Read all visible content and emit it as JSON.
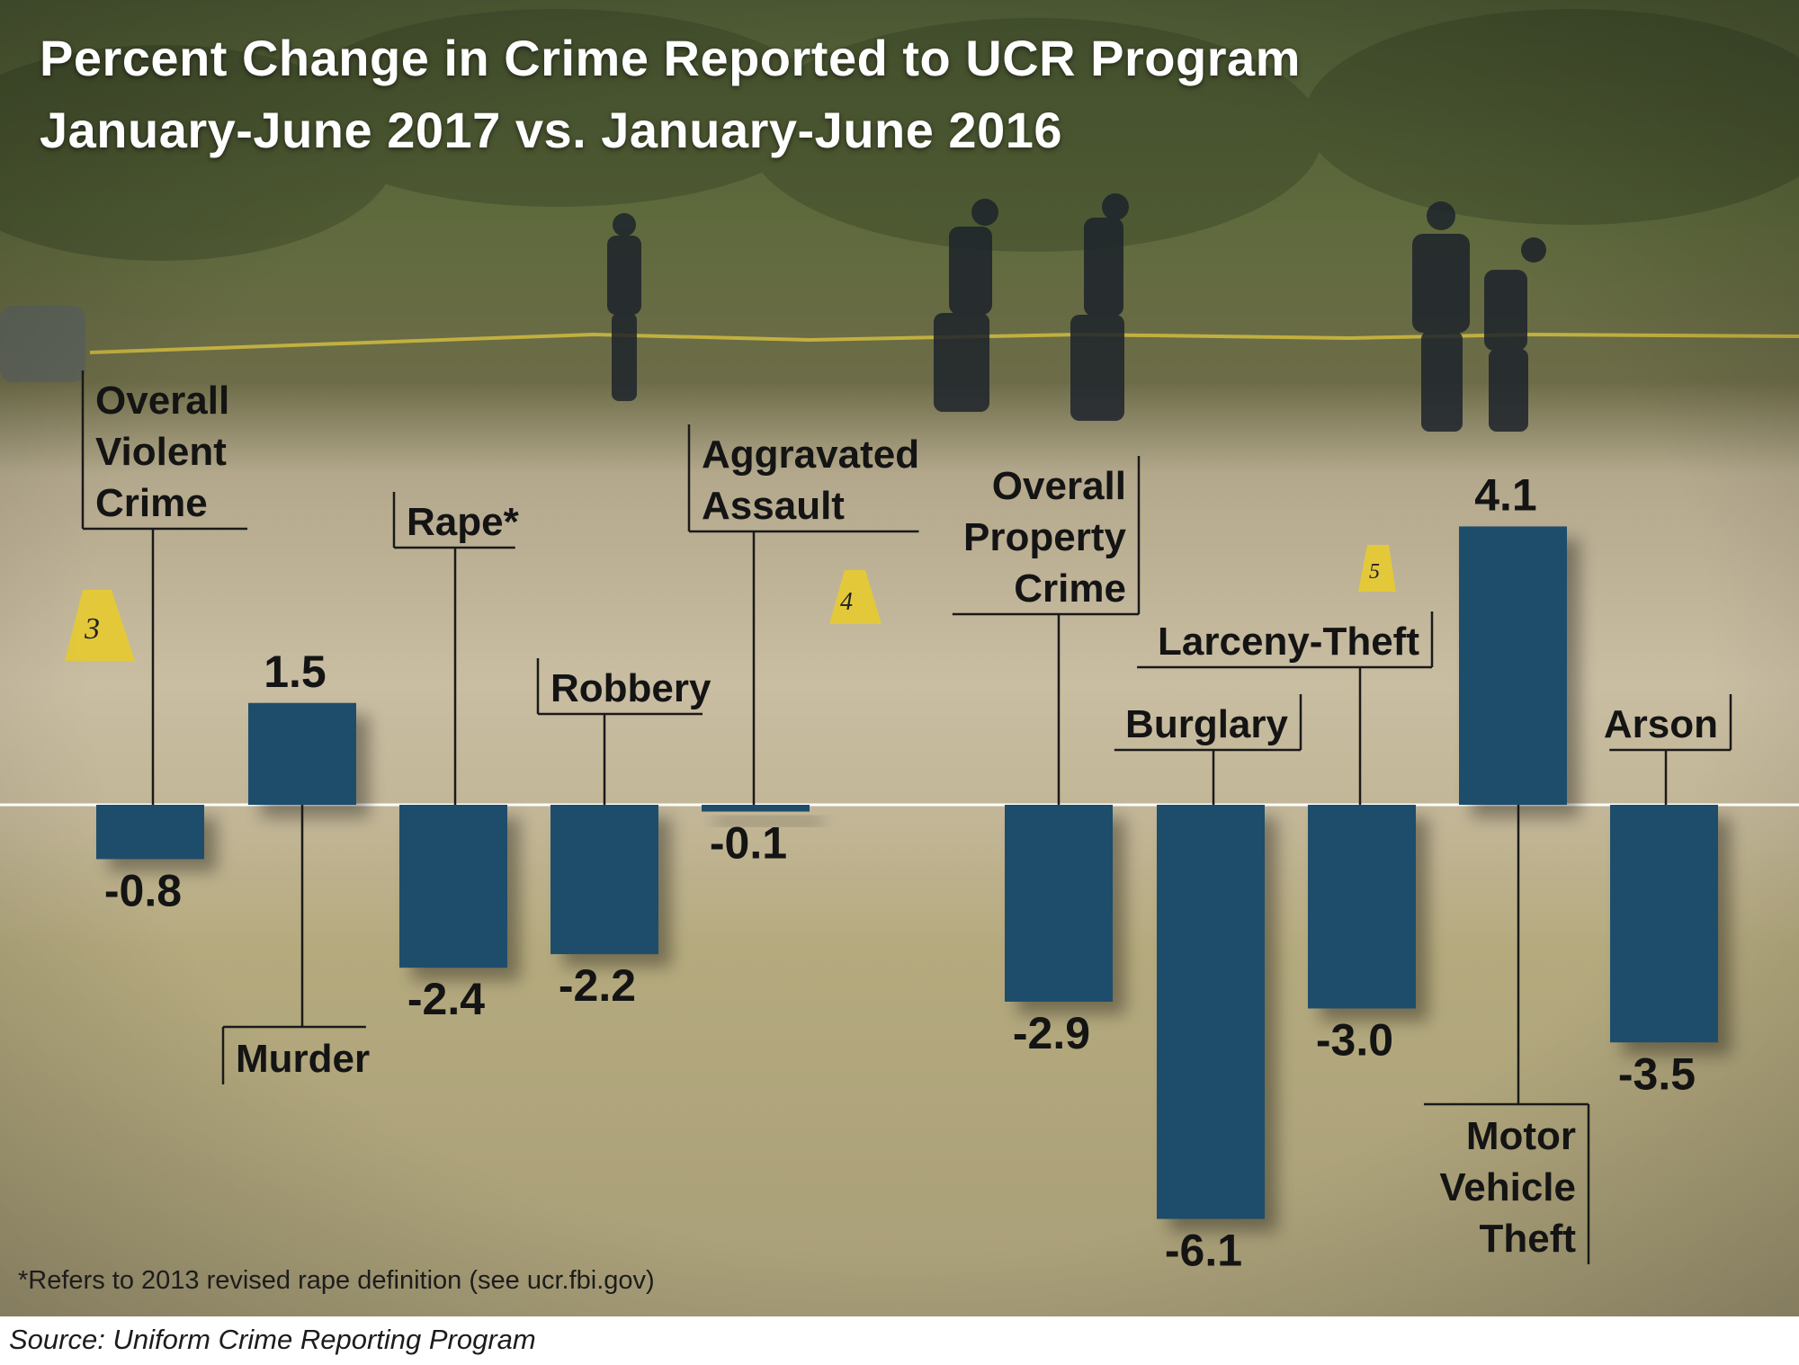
{
  "title_line1": "Percent Change in Crime Reported to UCR Program",
  "title_line2": "January-June 2017 vs. January-June 2016",
  "footnote": "*Refers to 2013 revised rape definition (see ucr.fbi.gov)",
  "source": "Source: Uniform Crime Reporting Program",
  "colors": {
    "bar": "#1e4d6b",
    "title": "#ffffff",
    "label_text": "#141414"
  },
  "evidence_markers": [
    "3",
    "4",
    "5"
  ],
  "chart_data": {
    "type": "bar",
    "title": "Percent Change in Crime Reported to UCR Program January-June 2017 vs. January-June 2016",
    "categories": [
      "Overall Violent Crime",
      "Murder",
      "Rape*",
      "Robbery",
      "Aggravated Assault",
      "Overall Property Crime",
      "Burglary",
      "Larceny-Theft",
      "Motor Vehicle Theft",
      "Arson"
    ],
    "values": [
      -0.8,
      1.5,
      -2.4,
      -2.2,
      -0.1,
      -2.9,
      -6.1,
      -3.0,
      4.1,
      -3.5
    ],
    "value_labels": [
      "-0.8",
      "1.5",
      "-2.4",
      "-2.2",
      "-0.1",
      "-2.9",
      "-6.1",
      "-3.0",
      "4.1",
      "-3.5"
    ],
    "category_labels": [
      [
        "Overall",
        "Violent",
        "Crime"
      ],
      [
        "Murder"
      ],
      [
        "Rape*"
      ],
      [
        "Robbery"
      ],
      [
        "Aggravated",
        "Assault"
      ],
      [
        "Overall",
        "Property",
        "Crime"
      ],
      [
        "Burglary"
      ],
      [
        "Larceny-Theft"
      ],
      [
        "Motor",
        "Vehicle",
        "Theft"
      ],
      [
        "Arson"
      ]
    ],
    "xlabel": "",
    "ylabel": "",
    "grid": false,
    "legend": "none",
    "ylim": [
      -6.1,
      4.1
    ]
  }
}
